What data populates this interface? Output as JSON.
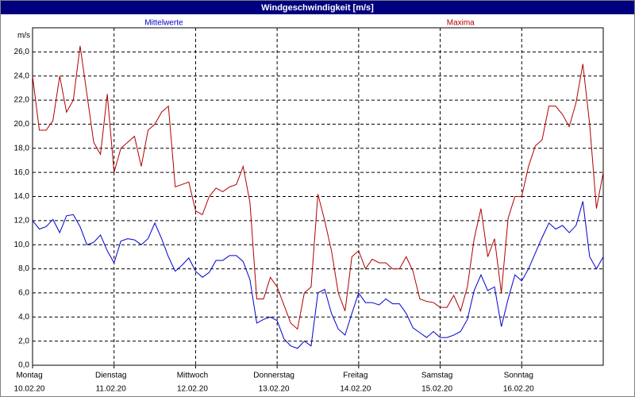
{
  "chart_data": {
    "type": "line",
    "title": "Windgeschwindigkeit [m/s]",
    "y_label": "m/s",
    "x": [
      0,
      2,
      4,
      6,
      8,
      10,
      12,
      14,
      16,
      18,
      20,
      22,
      24,
      26,
      28,
      30,
      32,
      34,
      36,
      38,
      40,
      42,
      44,
      46,
      48,
      50,
      52,
      54,
      56,
      58,
      60,
      62,
      64,
      66,
      68,
      70,
      72,
      74,
      76,
      78,
      80,
      82,
      84,
      86,
      88,
      90,
      92,
      94,
      96,
      98,
      100,
      102,
      104,
      106,
      108,
      110,
      112,
      114,
      116,
      118,
      120,
      122,
      124,
      126,
      128,
      130,
      132,
      134,
      136,
      138,
      140,
      142,
      144,
      146,
      148,
      150,
      152,
      154,
      156,
      158,
      160,
      162,
      164,
      166,
      168
    ],
    "series": [
      {
        "name": "Mittelwerte",
        "color": "#0000cc",
        "values": [
          12.0,
          11.3,
          11.5,
          12.1,
          11.0,
          12.4,
          12.5,
          11.5,
          10.0,
          10.2,
          10.8,
          9.5,
          8.5,
          10.3,
          10.5,
          10.4,
          10.0,
          10.5,
          11.8,
          10.5,
          9.0,
          7.8,
          8.3,
          8.9,
          7.8,
          7.3,
          7.7,
          8.7,
          8.7,
          9.1,
          9.1,
          8.6,
          7.1,
          3.5,
          3.8,
          4.0,
          3.7,
          2.2,
          1.6,
          1.4,
          2.0,
          1.6,
          6.0,
          6.3,
          4.3,
          3.0,
          2.5,
          4.3,
          6.0,
          5.2,
          5.2,
          5.0,
          5.5,
          5.1,
          5.1,
          4.3,
          3.1,
          2.7,
          2.3,
          2.8,
          2.3,
          2.3,
          2.5,
          2.8,
          3.8,
          6.2,
          7.5,
          6.2,
          6.5,
          3.2,
          5.5,
          7.5,
          7.0,
          8.0,
          9.3,
          10.6,
          11.8,
          11.3,
          11.6,
          11.0,
          11.6,
          13.6,
          9.0,
          8.0,
          9.0
        ]
      },
      {
        "name": "Maxima",
        "color": "#b00000",
        "values": [
          24.0,
          19.5,
          19.5,
          20.3,
          24.0,
          21.0,
          22.0,
          26.5,
          22.5,
          18.5,
          17.5,
          22.5,
          16.0,
          18.0,
          18.5,
          19.0,
          16.5,
          19.5,
          20.0,
          21.0,
          21.5,
          14.8,
          15.0,
          15.2,
          12.8,
          12.5,
          14.0,
          14.7,
          14.4,
          14.8,
          15.0,
          16.5,
          13.5,
          5.5,
          5.5,
          7.3,
          6.5,
          5.0,
          3.5,
          3.0,
          6.0,
          6.5,
          14.2,
          12.0,
          9.5,
          6.0,
          4.5,
          9.0,
          9.5,
          8.0,
          8.8,
          8.5,
          8.5,
          8.0,
          8.0,
          9.0,
          7.8,
          5.5,
          5.3,
          5.2,
          4.8,
          4.8,
          5.8,
          4.5,
          6.5,
          10.5,
          13.0,
          9.0,
          10.5,
          6.0,
          12.2,
          14.0,
          14.0,
          16.5,
          18.2,
          18.7,
          21.5,
          21.5,
          20.8,
          19.8,
          21.8,
          25.0,
          20.0,
          13.0,
          16.0
        ]
      }
    ],
    "xlim": [
      0,
      168
    ],
    "xticks": [
      {
        "value": 0,
        "label": "Montag",
        "date": "10.02.20"
      },
      {
        "value": 24,
        "label": "Dienstag",
        "date": "11.02.20"
      },
      {
        "value": 48,
        "label": "Mittwoch",
        "date": "12.02.20"
      },
      {
        "value": 72,
        "label": "Donnerstag",
        "date": "13.02.20"
      },
      {
        "value": 96,
        "label": "Freitag",
        "date": "14.02.20"
      },
      {
        "value": 120,
        "label": "Samstag",
        "date": "15.02.20"
      },
      {
        "value": 144,
        "label": "Sonntag",
        "date": "16.02.20"
      }
    ],
    "ylim": [
      0,
      28
    ],
    "yticks": [
      {
        "value": 0,
        "label": "0,0"
      },
      {
        "value": 2,
        "label": "2,0"
      },
      {
        "value": 4,
        "label": "4,0"
      },
      {
        "value": 6,
        "label": "6,0"
      },
      {
        "value": 8,
        "label": "8,0"
      },
      {
        "value": 10,
        "label": "10,0"
      },
      {
        "value": 12,
        "label": "12,0"
      },
      {
        "value": 14,
        "label": "14,0"
      },
      {
        "value": 16,
        "label": "16,0"
      },
      {
        "value": 18,
        "label": "18,0"
      },
      {
        "value": 20,
        "label": "20,0"
      },
      {
        "value": 22,
        "label": "22,0"
      },
      {
        "value": 24,
        "label": "24,0"
      },
      {
        "value": 26,
        "label": "26,0"
      }
    ],
    "grid": true
  }
}
